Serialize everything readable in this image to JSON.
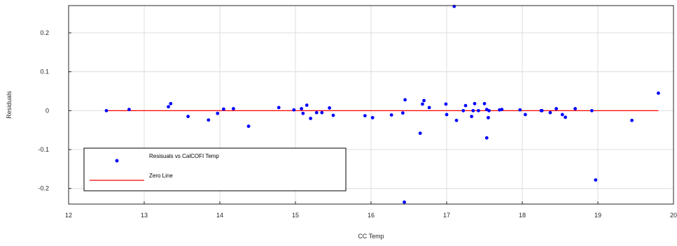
{
  "chart_data": {
    "type": "scatter",
    "title": "",
    "xlabel": "CC Temp",
    "ylabel": "Residuals",
    "xlim": [
      12,
      20
    ],
    "ylim": [
      -0.24,
      0.27
    ],
    "xticks": [
      12,
      13,
      14,
      15,
      16,
      17,
      18,
      19,
      20
    ],
    "yticks": [
      -0.2,
      -0.1,
      0,
      0.1,
      0.2
    ],
    "xtick_labels": [
      "12",
      "13",
      "14",
      "15",
      "16",
      "17",
      "18",
      "19",
      "20"
    ],
    "ytick_labels": [
      "-0.2",
      "-0.1",
      "0",
      "0.1",
      "0.2"
    ],
    "grid": true,
    "legend_position": "bottom-left",
    "series": [
      {
        "name": "Resisuals vs CalCOFI Temp",
        "type": "scatter",
        "color": "#0000ff",
        "points": [
          [
            12.5,
            0.0
          ],
          [
            12.8,
            0.003
          ],
          [
            13.32,
            0.01
          ],
          [
            13.35,
            0.018
          ],
          [
            13.58,
            -0.015
          ],
          [
            13.85,
            -0.024
          ],
          [
            13.97,
            -0.007
          ],
          [
            14.05,
            0.004
          ],
          [
            14.18,
            0.005
          ],
          [
            14.38,
            -0.04
          ],
          [
            14.78,
            0.008
          ],
          [
            14.98,
            0.002
          ],
          [
            15.08,
            0.005
          ],
          [
            15.1,
            -0.007
          ],
          [
            15.15,
            0.014
          ],
          [
            15.2,
            -0.02
          ],
          [
            15.28,
            -0.005
          ],
          [
            15.35,
            -0.005
          ],
          [
            15.45,
            0.007
          ],
          [
            15.5,
            -0.012
          ],
          [
            15.92,
            -0.013
          ],
          [
            16.02,
            -0.018
          ],
          [
            16.27,
            -0.011
          ],
          [
            16.42,
            -0.006
          ],
          [
            16.45,
            0.028
          ],
          [
            16.44,
            -0.235
          ],
          [
            16.65,
            -0.058
          ],
          [
            16.68,
            0.017
          ],
          [
            16.7,
            0.026
          ],
          [
            16.77,
            0.008
          ],
          [
            16.99,
            0.017
          ],
          [
            17.0,
            -0.01
          ],
          [
            17.1,
            0.268
          ],
          [
            17.13,
            -0.025
          ],
          [
            17.22,
            0.0
          ],
          [
            17.25,
            0.013
          ],
          [
            17.33,
            -0.015
          ],
          [
            17.35,
            0.0
          ],
          [
            17.37,
            0.018
          ],
          [
            17.42,
            0.0
          ],
          [
            17.5,
            0.018
          ],
          [
            17.53,
            0.003
          ],
          [
            17.53,
            -0.07
          ],
          [
            17.55,
            -0.018
          ],
          [
            17.56,
            0.0
          ],
          [
            17.7,
            0.002
          ],
          [
            17.73,
            0.003
          ],
          [
            17.97,
            0.002
          ],
          [
            18.04,
            -0.01
          ],
          [
            18.25,
            0.0
          ],
          [
            18.26,
            0.0
          ],
          [
            18.37,
            -0.005
          ],
          [
            18.45,
            0.005
          ],
          [
            18.53,
            -0.01
          ],
          [
            18.57,
            -0.017
          ],
          [
            18.7,
            0.005
          ],
          [
            18.92,
            0.0
          ],
          [
            18.97,
            -0.178
          ],
          [
            19.45,
            -0.025
          ],
          [
            19.8,
            0.045
          ]
        ]
      },
      {
        "name": "Zero Line",
        "type": "line",
        "color": "#ff0000",
        "x": [
          12.5,
          19.8
        ],
        "y": [
          0,
          0
        ]
      }
    ]
  }
}
